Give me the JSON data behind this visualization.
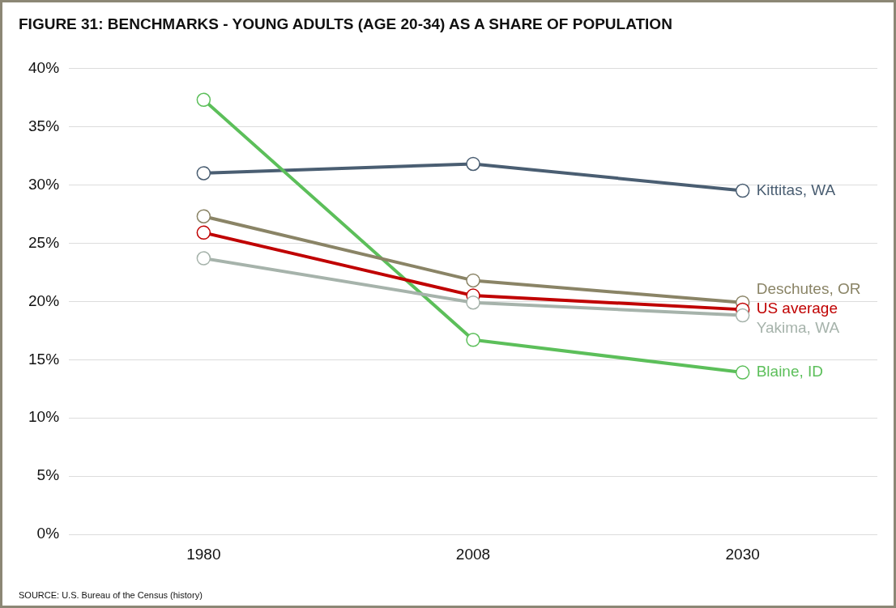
{
  "chart_data": {
    "type": "line",
    "title": "FIGURE 31: BENCHMARKS - YOUNG ADULTS (AGE 20-34) AS A SHARE OF POPULATION",
    "categories": [
      "1980",
      "2008",
      "2030"
    ],
    "series": [
      {
        "name": "Kittitas, WA",
        "color": "#4a5e72",
        "values": [
          31.0,
          31.8,
          29.5
        ]
      },
      {
        "name": "Blaine, ID",
        "color": "#5cbf5a",
        "values": [
          37.3,
          16.7,
          13.9
        ]
      },
      {
        "name": "Deschutes, OR",
        "color": "#8a8466",
        "values": [
          27.3,
          21.8,
          19.9
        ]
      },
      {
        "name": "US average",
        "color": "#c00000",
        "values": [
          25.9,
          20.5,
          19.3
        ]
      },
      {
        "name": "Yakima, WA",
        "color": "#a6b3ab",
        "values": [
          23.7,
          19.9,
          18.8
        ]
      }
    ],
    "ylim": [
      0,
      40
    ],
    "yticks": [
      {
        "value": 0,
        "label": "0%"
      },
      {
        "value": 5,
        "label": "5%"
      },
      {
        "value": 10,
        "label": "10%"
      },
      {
        "value": 15,
        "label": "15%"
      },
      {
        "value": 20,
        "label": "20%"
      },
      {
        "value": 25,
        "label": "25%"
      },
      {
        "value": 30,
        "label": "30%"
      },
      {
        "value": 35,
        "label": "35%"
      },
      {
        "value": 40,
        "label": "40%"
      }
    ],
    "grid": "y",
    "legend": false,
    "marker": "circle",
    "line_style": "solid",
    "annotations": [
      "SOURCE: U.S. Bureau of the Census (history)"
    ]
  }
}
